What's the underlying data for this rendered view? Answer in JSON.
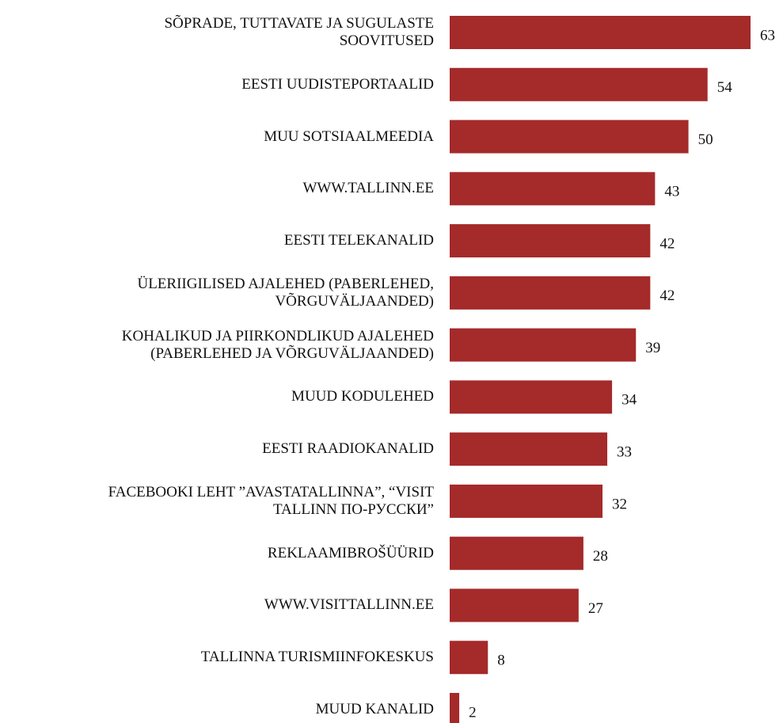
{
  "chart_data": {
    "type": "bar",
    "orientation": "horizontal",
    "color": "#a52a2a",
    "categories": [
      "SÕPRADE, TUTTAVATE JA SUGULASTE\nSOOVITUSED",
      "EESTI UUDISTEPORTAALID",
      "MUU SOTSIAALMEEDIA",
      "WWW.TALLINN.EE",
      "EESTI TELEKANALID",
      "ÜLERIIGILISED AJALEHED (PABERLEHED,\nVÕRGUVÄLJAANDED)",
      "KOHALIKUD JA PIIRKONDLIKUD AJALEHED\n(PABERLEHED JA VÕRGUVÄLJAANDED)",
      "MUUD KODULEHED",
      "EESTI RAADIOKANALID",
      "FACEBOOKI LEHT ”AVASTATALLINNA”, “VISIT\nTALLINN ПО-РУССКИ”",
      "REKLAAMIBROŠÜÜRID",
      "WWW.VISITTALLINN.EE",
      "TALLINNA TURISMIINFOKESKUS",
      "MUUD KANALID"
    ],
    "values": [
      63,
      54,
      50,
      43,
      42,
      42,
      39,
      34,
      33,
      32,
      28,
      27,
      8,
      2
    ]
  }
}
